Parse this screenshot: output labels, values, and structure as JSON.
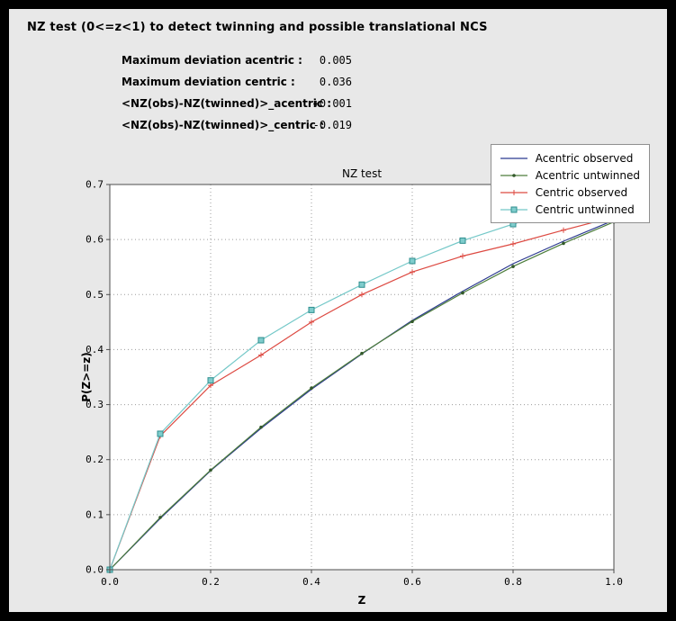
{
  "header": {
    "title": "NZ test (0<=z<1) to detect twinning and possible translational NCS"
  },
  "stats": [
    {
      "label": "Maximum deviation acentric :",
      "value": "0.005"
    },
    {
      "label": "Maximum deviation centric :",
      "value": "0.036"
    },
    {
      "label": "<NZ(obs)-NZ(twinned)>_acentric :",
      "value": "+0.001"
    },
    {
      "label": "<NZ(obs)-NZ(twinned)>_centric :",
      "value": "-0.019"
    }
  ],
  "chart_data": {
    "type": "line",
    "title": "NZ test",
    "xlabel": "Z",
    "ylabel": "P(Z>=z)",
    "xlim": [
      0.0,
      1.0
    ],
    "ylim": [
      0.0,
      0.7
    ],
    "xticks": [
      0.0,
      0.2,
      0.4,
      0.6,
      0.8,
      1.0
    ],
    "yticks": [
      0.0,
      0.1,
      0.2,
      0.3,
      0.4,
      0.5,
      0.6,
      0.7
    ],
    "grid": true,
    "legend_position": "top-right",
    "x": [
      0.0,
      0.1,
      0.2,
      0.3,
      0.4,
      0.5,
      0.6,
      0.7,
      0.8,
      0.9,
      1.0
    ],
    "series": [
      {
        "name": "Acentric observed",
        "color": "#2b3990",
        "marker": "none",
        "values": [
          0.0,
          0.093,
          0.18,
          0.257,
          0.328,
          0.392,
          0.453,
          0.506,
          0.556,
          0.597,
          0.635
        ]
      },
      {
        "name": "Acentric untwinned",
        "color": "#4d7d3c",
        "marker": "dot",
        "marker_fill": "#33592a",
        "values": [
          0.0,
          0.095,
          0.181,
          0.259,
          0.33,
          0.393,
          0.451,
          0.503,
          0.551,
          0.593,
          0.632
        ]
      },
      {
        "name": "Centric observed",
        "color": "#dd4a42",
        "marker": "plus",
        "values": [
          0.0,
          0.243,
          0.335,
          0.39,
          0.45,
          0.5,
          0.541,
          0.57,
          0.592,
          0.617,
          0.641
        ]
      },
      {
        "name": "Centric untwinned",
        "color": "#74c8c8",
        "marker": "square",
        "marker_fill": "#7fcccc",
        "marker_edge": "#2f8f8f",
        "values": [
          0.0,
          0.247,
          0.344,
          0.417,
          0.472,
          0.518,
          0.561,
          0.598,
          0.628,
          0.655,
          0.682
        ]
      }
    ]
  }
}
